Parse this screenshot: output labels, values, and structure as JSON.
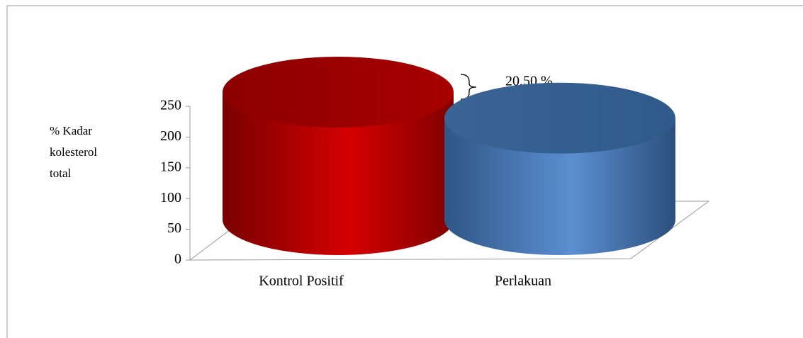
{
  "chart_data": {
    "type": "bar3d",
    "y_label": [
      "% Kadar",
      "kolesterol",
      "total"
    ],
    "categories": [
      "Kontrol Positif",
      "Perlakuan"
    ],
    "values": [
      250,
      199
    ],
    "colors": [
      "#c00000",
      "#4f81bd"
    ],
    "ylim": [
      0,
      250
    ],
    "yticks": [
      0,
      50,
      100,
      150,
      200,
      250
    ],
    "annotation": "20,50 %"
  }
}
